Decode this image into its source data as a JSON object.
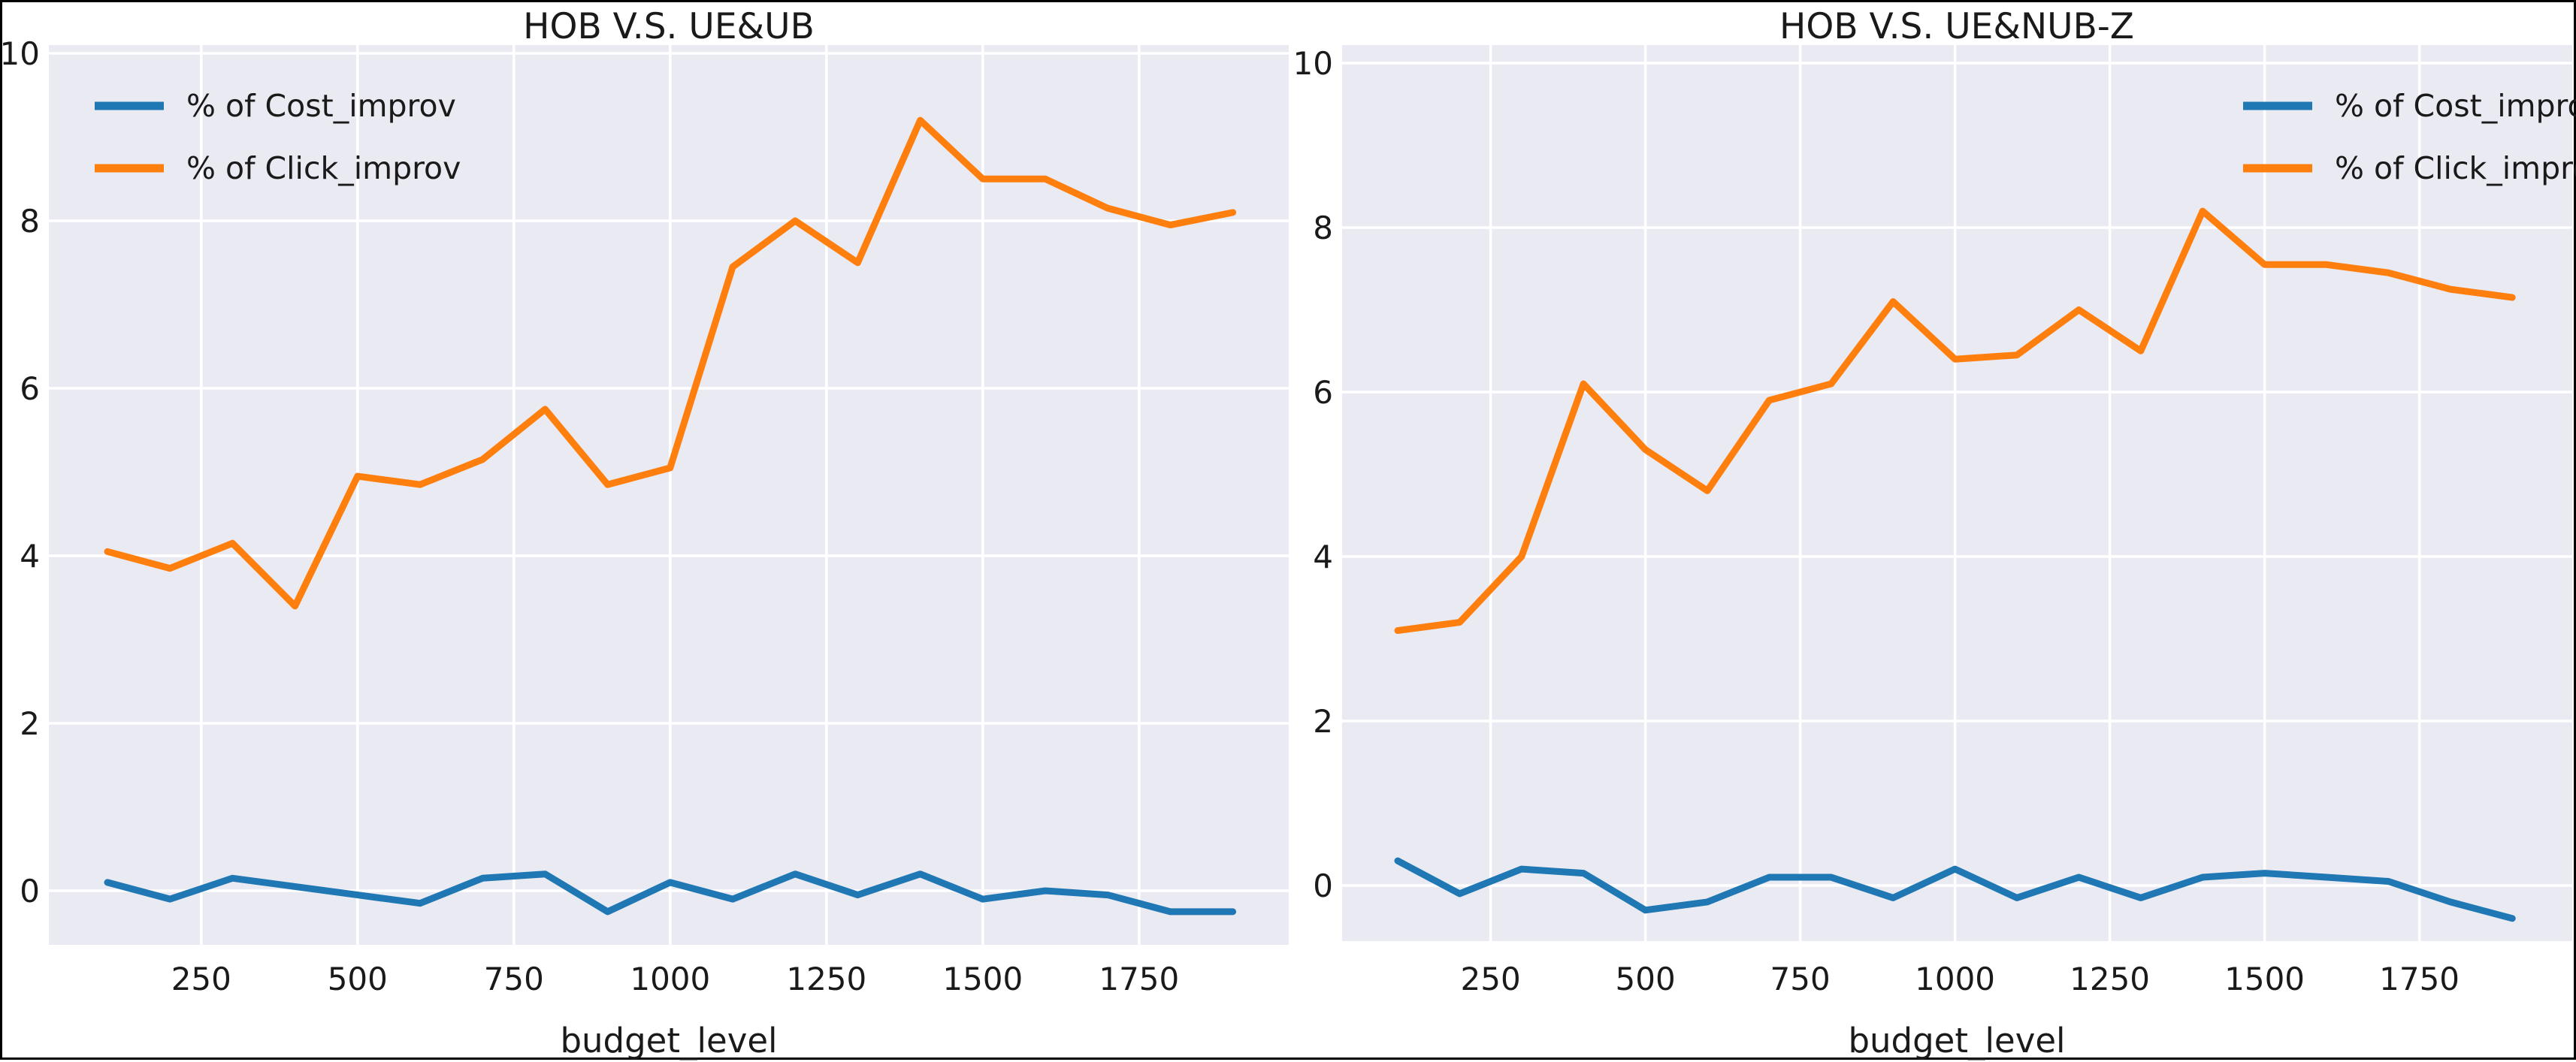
{
  "colors": {
    "figure_bg": "#ffffff",
    "plot_bg": "#eaeaf2",
    "grid": "#ffffff",
    "text": "#1a1a1a",
    "cost_line": "#1f77b4",
    "click_line": "#ff7f0e",
    "frame_border": "#000000"
  },
  "chart_data": [
    {
      "type": "line",
      "title": "HOB V.S. UE&UB",
      "xlabel": "budget_level",
      "ylabel": "",
      "grid": true,
      "legend_position": "upper left",
      "xlim": [
        10,
        1990
      ],
      "ylim": [
        -0.68,
        10.15
      ],
      "xticks": [
        250,
        500,
        750,
        1000,
        1250,
        1500,
        1750
      ],
      "yticks": [
        0,
        2,
        4,
        6,
        8,
        10
      ],
      "x": [
        100,
        200,
        300,
        400,
        500,
        600,
        700,
        800,
        900,
        1000,
        1100,
        1200,
        1300,
        1400,
        1500,
        1600,
        1700,
        1800,
        1900
      ],
      "series": [
        {
          "name": "% of Cost_improv",
          "color": "#1f77b4",
          "values": [
            0.1,
            -0.1,
            0.15,
            0.05,
            -0.05,
            -0.15,
            0.15,
            0.2,
            -0.25,
            0.1,
            -0.1,
            0.2,
            -0.05,
            0.2,
            -0.1,
            0.0,
            -0.05,
            -0.25,
            -0.25
          ]
        },
        {
          "name": "% of Click_improv",
          "color": "#ff7f0e",
          "values": [
            4.05,
            3.85,
            4.15,
            3.4,
            4.95,
            4.85,
            5.15,
            5.75,
            4.85,
            5.05,
            7.45,
            8.0,
            7.5,
            9.2,
            8.5,
            8.5,
            8.15,
            7.95,
            8.1
          ]
        }
      ]
    },
    {
      "type": "line",
      "title": "HOB V.S. UE&NUB-Z",
      "xlabel": "budget_level",
      "ylabel": "",
      "grid": true,
      "legend_position": "upper right",
      "xlim": [
        10,
        1990
      ],
      "ylim": [
        -0.68,
        10.2
      ],
      "xticks": [
        250,
        500,
        750,
        1000,
        1250,
        1500,
        1750
      ],
      "yticks": [
        0,
        2,
        4,
        6,
        8,
        10
      ],
      "x": [
        100,
        200,
        300,
        400,
        500,
        600,
        700,
        800,
        900,
        1000,
        1100,
        1200,
        1300,
        1400,
        1500,
        1600,
        1700,
        1800,
        1900
      ],
      "series": [
        {
          "name": "% of Cost_improv",
          "color": "#1f77b4",
          "values": [
            0.3,
            -0.1,
            0.2,
            0.15,
            -0.3,
            -0.2,
            0.1,
            0.1,
            -0.15,
            0.2,
            -0.15,
            0.1,
            -0.15,
            0.1,
            0.15,
            0.1,
            0.05,
            -0.2,
            -0.4
          ]
        },
        {
          "name": "% of Click_improv",
          "color": "#ff7f0e",
          "values": [
            3.1,
            3.2,
            4.0,
            6.1,
            5.3,
            4.8,
            5.9,
            6.1,
            7.1,
            6.4,
            6.45,
            7.0,
            6.5,
            8.2,
            7.55,
            7.55,
            7.45,
            7.25,
            7.15
          ]
        }
      ]
    }
  ]
}
